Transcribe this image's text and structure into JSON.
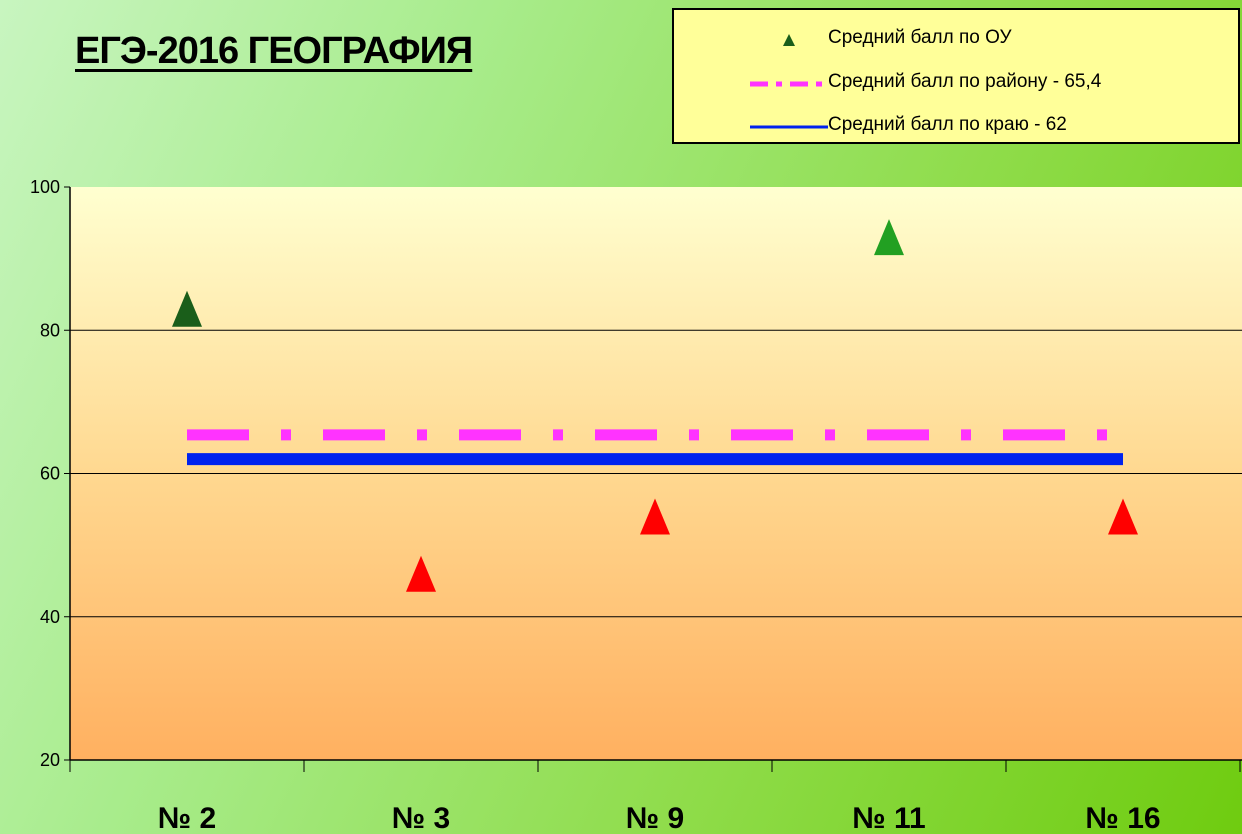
{
  "title": "ЕГЭ-2016 ГЕОГРАФИЯ",
  "legend": {
    "items": [
      {
        "label": "Средний балл по ОУ",
        "key": "triangle-marker",
        "color": "#1a5e1a"
      },
      {
        "label": "Средний балл по району  - 65,4",
        "key": "dash-dot-line",
        "color": "#ff33ff"
      },
      {
        "label": "Средний балл по краю - 62",
        "key": "solid-line",
        "color": "#0022ee"
      }
    ]
  },
  "chart_data": {
    "type": "scatter",
    "title": "ЕГЭ-2016 ГЕОГРАФИЯ",
    "xlabel": "",
    "ylabel": "",
    "categories": [
      "№ 2",
      "№ 3",
      "№ 9",
      "№ 11",
      "№ 16"
    ],
    "ylim": [
      20,
      100
    ],
    "yticks": [
      20,
      40,
      60,
      80,
      100
    ],
    "ytick_labels": [
      "20",
      "40",
      "60",
      "80",
      "100"
    ],
    "grid": true,
    "legend_position": "top-right",
    "series": [
      {
        "name": "Средний балл по ОУ",
        "values": [
          83,
          46,
          54,
          93,
          54
        ],
        "point_colors": [
          "#1a5e1a",
          "#ff0000",
          "#ff0000",
          "#22a022",
          "#ff0000"
        ]
      },
      {
        "name": "Средний балл по району  - 65,4",
        "values": [
          65.4,
          65.4,
          65.4,
          65.4,
          65.4
        ],
        "color": "#ff33ff"
      },
      {
        "name": "Средний балл по краю - 62",
        "values": [
          62,
          62,
          62,
          62,
          62
        ],
        "color": "#0022ee"
      }
    ]
  }
}
